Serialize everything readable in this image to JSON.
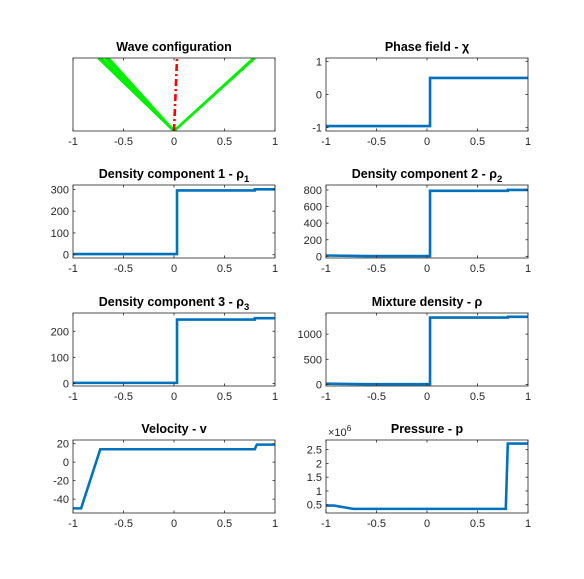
{
  "chart_data": [
    {
      "type": "line",
      "title": "Wave configuration",
      "title_parts": [],
      "xlim": [
        -1,
        1
      ],
      "ylim": [
        0,
        1
      ],
      "xticks": [
        -1,
        -0.5,
        0,
        0.5,
        1
      ],
      "xtick_labels": [
        "-1",
        "-0.5",
        "0",
        "0.5",
        "1"
      ],
      "yticks": [],
      "ytick_labels": [],
      "series": [
        {
          "color": "#00ee00",
          "dash": false,
          "x": [
            0,
            -0.75
          ],
          "y": [
            0,
            1
          ]
        },
        {
          "color": "#00ee00",
          "dash": false,
          "x": [
            0,
            -0.72
          ],
          "y": [
            0,
            1
          ]
        },
        {
          "color": "#00ee00",
          "dash": false,
          "x": [
            0,
            -0.68
          ],
          "y": [
            0,
            1
          ]
        },
        {
          "color": "#00ee00",
          "dash": false,
          "x": [
            0,
            -0.65
          ],
          "y": [
            0,
            1
          ]
        },
        {
          "color": "#00ee00",
          "dash": false,
          "x": [
            0,
            0.79
          ],
          "y": [
            0,
            1
          ]
        },
        {
          "color": "#00ee00",
          "dash": false,
          "x": [
            0,
            0.8
          ],
          "y": [
            0,
            1
          ]
        },
        {
          "color": "#ff0000",
          "dash": true,
          "x": [
            0,
            0.03
          ],
          "y": [
            0,
            1
          ]
        }
      ]
    },
    {
      "type": "line",
      "title": "Phase field - χ",
      "title_parts": [],
      "xlim": [
        -1,
        1
      ],
      "ylim": [
        -1.1,
        1.1
      ],
      "xticks": [
        -1,
        -0.5,
        0,
        0.5,
        1
      ],
      "xtick_labels": [
        "-1",
        "-0.5",
        "0",
        "0.5",
        "1"
      ],
      "yticks": [
        -1,
        0,
        1
      ],
      "ytick_labels": [
        "-1",
        "0",
        "1"
      ],
      "series": [
        {
          "color": "#0072bd",
          "dash": false,
          "x": [
            -1,
            0.03,
            0.03,
            1
          ],
          "y": [
            -0.95,
            -0.95,
            0.5,
            0.5
          ]
        }
      ]
    },
    {
      "type": "line",
      "title": "Density component 1 - ρ1",
      "title_parts": [
        {
          "text": "Density component 1 - ",
          "shift": "normal"
        },
        {
          "text": "ρ",
          "shift": "normal"
        },
        {
          "text": "1",
          "shift": "sub"
        }
      ],
      "xlim": [
        -1,
        1
      ],
      "ylim": [
        -15,
        320
      ],
      "xticks": [
        -1,
        -0.5,
        0,
        0.5,
        1
      ],
      "xtick_labels": [
        "-1",
        "-0.5",
        "0",
        "0.5",
        "1"
      ],
      "yticks": [
        0,
        100,
        200,
        300
      ],
      "ytick_labels": [
        "0",
        "100",
        "200",
        "300"
      ],
      "series": [
        {
          "color": "#0072bd",
          "dash": false,
          "x": [
            -1,
            0.03,
            0.03,
            0.8,
            0.8,
            1
          ],
          "y": [
            3,
            3,
            295,
            295,
            300,
            300
          ]
        }
      ]
    },
    {
      "type": "line",
      "title": "Density component 2 - ρ2",
      "title_parts": [
        {
          "text": "Density component 2 - ",
          "shift": "normal"
        },
        {
          "text": "ρ",
          "shift": "normal"
        },
        {
          "text": "2",
          "shift": "sub"
        }
      ],
      "xlim": [
        -1,
        1
      ],
      "ylim": [
        -20,
        860
      ],
      "xticks": [
        -1,
        -0.5,
        0,
        0.5,
        1
      ],
      "xtick_labels": [
        "-1",
        "-0.5",
        "0",
        "0.5",
        "1"
      ],
      "yticks": [
        0,
        200,
        400,
        600,
        800
      ],
      "ytick_labels": [
        "0",
        "200",
        "400",
        "600",
        "800"
      ],
      "series": [
        {
          "color": "#0072bd",
          "dash": false,
          "x": [
            -1,
            -0.6,
            0.03,
            0.03,
            0.8,
            0.8,
            1
          ],
          "y": [
            10,
            3,
            3,
            790,
            790,
            800,
            800
          ]
        }
      ]
    },
    {
      "type": "line",
      "title": "Density component 3 - ρ3",
      "title_parts": [
        {
          "text": "Density component 3 - ",
          "shift": "normal"
        },
        {
          "text": "ρ",
          "shift": "normal"
        },
        {
          "text": "3",
          "shift": "sub"
        }
      ],
      "xlim": [
        -1,
        1
      ],
      "ylim": [
        -10,
        270
      ],
      "xticks": [
        -1,
        -0.5,
        0,
        0.5,
        1
      ],
      "xtick_labels": [
        "-1",
        "-0.5",
        "0",
        "0.5",
        "1"
      ],
      "yticks": [
        0,
        100,
        200
      ],
      "ytick_labels": [
        "0",
        "100",
        "200"
      ],
      "series": [
        {
          "color": "#0072bd",
          "dash": false,
          "x": [
            -1,
            0.03,
            0.03,
            0.8,
            0.8,
            1
          ],
          "y": [
            2,
            2,
            245,
            245,
            250,
            250
          ]
        }
      ]
    },
    {
      "type": "line",
      "title": "Mixture density - ρ",
      "title_parts": [],
      "xlim": [
        -1,
        1
      ],
      "ylim": [
        -30,
        1420
      ],
      "xticks": [
        -1,
        -0.5,
        0,
        0.5,
        1
      ],
      "xtick_labels": [
        "-1",
        "-0.5",
        "0",
        "0.5",
        "1"
      ],
      "yticks": [
        0,
        500,
        1000
      ],
      "ytick_labels": [
        "0",
        "500",
        "1000"
      ],
      "series": [
        {
          "color": "#0072bd",
          "dash": false,
          "x": [
            -1,
            -0.6,
            0.03,
            0.03,
            0.8,
            0.8,
            1
          ],
          "y": [
            15,
            7,
            7,
            1330,
            1330,
            1345,
            1345
          ]
        }
      ]
    },
    {
      "type": "line",
      "title": "Velocity - v",
      "title_parts": [],
      "xlim": [
        -1,
        1
      ],
      "ylim": [
        -55,
        24
      ],
      "xticks": [
        -1,
        -0.5,
        0,
        0.5,
        1
      ],
      "xtick_labels": [
        "-1",
        "-0.5",
        "0",
        "0.5",
        "1"
      ],
      "yticks": [
        -40,
        -20,
        0,
        20
      ],
      "ytick_labels": [
        "-40",
        "-20",
        "0",
        "20"
      ],
      "series": [
        {
          "color": "#0072bd",
          "dash": false,
          "x": [
            -1,
            -0.92,
            -0.73,
            0.8,
            0.82,
            1
          ],
          "y": [
            -50,
            -50,
            14,
            14,
            19,
            19
          ]
        }
      ]
    },
    {
      "type": "line",
      "title": "Pressure - p",
      "title_parts": [],
      "xlim": [
        -1,
        1
      ],
      "ylim": [
        0.2,
        2.85
      ],
      "xticks": [
        -1,
        -0.5,
        0,
        0.5,
        1
      ],
      "xtick_labels": [
        "-1",
        "-0.5",
        "0",
        "0.5",
        "1"
      ],
      "yticks": [
        0.5,
        1,
        1.5,
        2,
        2.5
      ],
      "ytick_labels": [
        "0.5",
        "1",
        "1.5",
        "2",
        "2.5"
      ],
      "y_multiplier": "×10",
      "y_multiplier_exp": "6",
      "series": [
        {
          "color": "#0072bd",
          "dash": false,
          "x": [
            -1,
            -0.92,
            -0.73,
            0.78,
            0.8,
            1
          ],
          "y": [
            0.47,
            0.47,
            0.35,
            0.35,
            2.72,
            2.72
          ]
        }
      ]
    }
  ]
}
